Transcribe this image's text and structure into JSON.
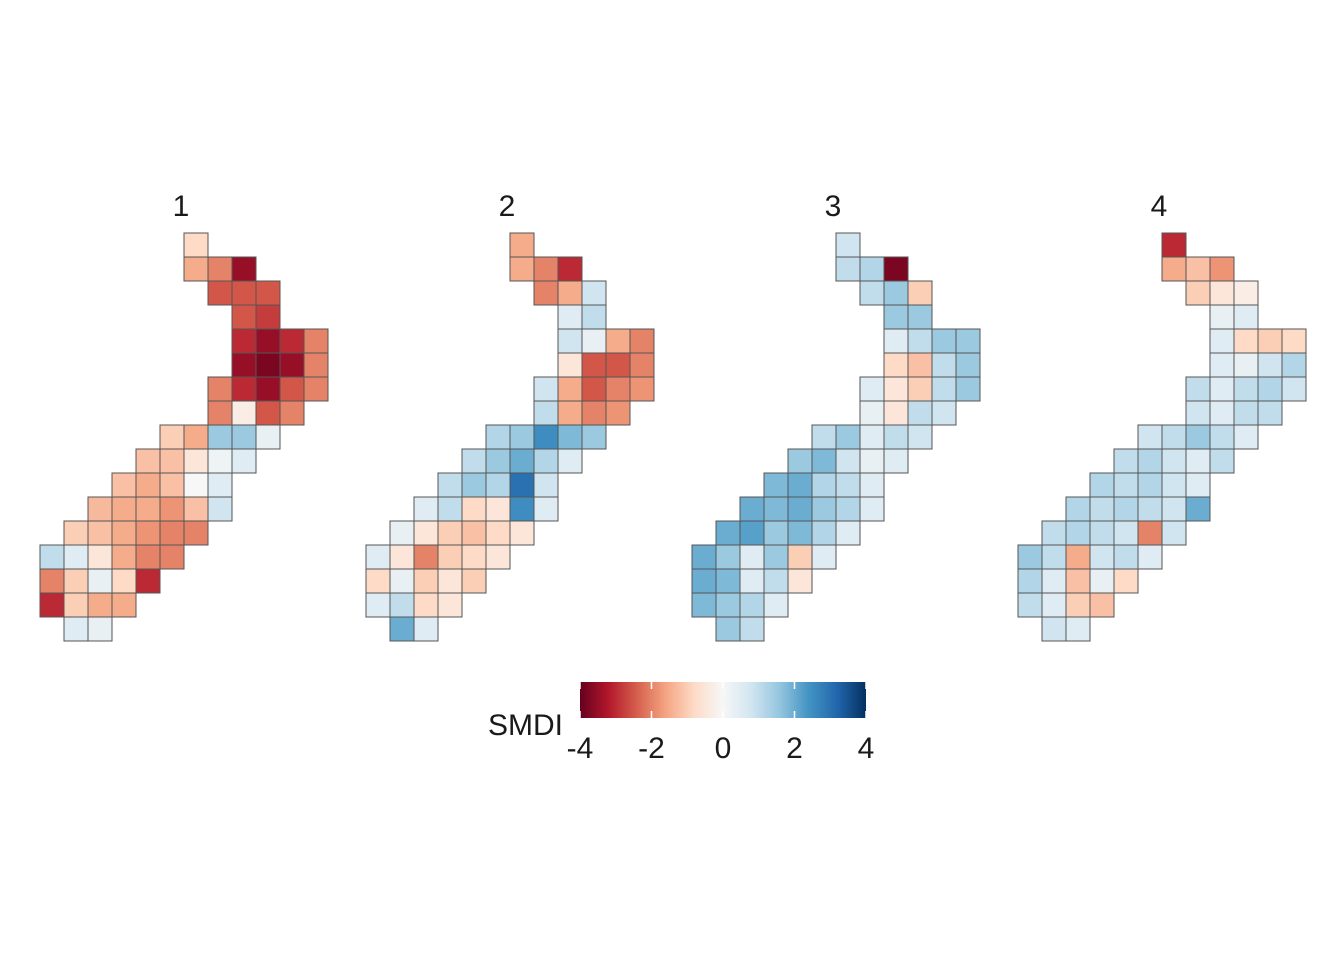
{
  "chart_data": {
    "type": "heatmap",
    "legend_title": "SMDI",
    "colors": [
      "#67001f",
      "#b2182b",
      "#d6604d",
      "#f4a582",
      "#fddbc7",
      "#f7f7f7",
      "#d1e5f0",
      "#92c5de",
      "#4393c3",
      "#2166ac",
      "#053061"
    ],
    "zlim": [
      -4,
      4
    ],
    "zticks": [
      -4,
      -2,
      0,
      2,
      4
    ],
    "panels": [
      {
        "title": "1",
        "rows": [
          [
            null,
            null,
            null,
            null,
            null,
            null,
            -0.8,
            null,
            null,
            null,
            null,
            null
          ],
          [
            null,
            null,
            null,
            null,
            null,
            null,
            -1.5,
            -2,
            -3.5,
            null,
            null,
            null
          ],
          [
            null,
            null,
            null,
            null,
            null,
            null,
            null,
            -2.5,
            -2.5,
            -2.5,
            null,
            null
          ],
          [
            null,
            null,
            null,
            null,
            null,
            null,
            null,
            null,
            -2.5,
            -2.8,
            null,
            null
          ],
          [
            null,
            null,
            null,
            null,
            null,
            null,
            null,
            null,
            -3,
            -3.5,
            -3,
            -2
          ],
          [
            null,
            null,
            null,
            null,
            null,
            null,
            null,
            null,
            -3.5,
            -3.8,
            -3.5,
            -2
          ],
          [
            null,
            null,
            null,
            null,
            null,
            null,
            null,
            -2,
            -3,
            -3.5,
            -2.5,
            -2
          ],
          [
            null,
            null,
            null,
            null,
            null,
            null,
            null,
            -2,
            -0.3,
            -2.5,
            -2,
            null
          ],
          [
            null,
            null,
            null,
            null,
            null,
            -1,
            -1.5,
            1.5,
            1.5,
            0.3,
            null,
            null
          ],
          [
            null,
            null,
            null,
            null,
            -1.2,
            -1.2,
            -0.5,
            0.2,
            0.5,
            null,
            null,
            null
          ],
          [
            null,
            null,
            null,
            -1.2,
            -1.5,
            -1.2,
            0,
            0.5,
            null,
            null,
            null,
            null
          ],
          [
            null,
            null,
            -1.3,
            -1.5,
            -1.5,
            -1.8,
            -1.2,
            0.8,
            null,
            null,
            null,
            null
          ],
          [
            null,
            -1,
            -1.2,
            -1.5,
            -1.8,
            -2,
            -2,
            null,
            null,
            null,
            null,
            null
          ],
          [
            1,
            0.5,
            -0.5,
            -1.5,
            -2,
            -2,
            null,
            null,
            null,
            null,
            null,
            null
          ],
          [
            -2,
            -1,
            0.3,
            -0.8,
            -3,
            null,
            null,
            null,
            null,
            null,
            null,
            null
          ],
          [
            -3,
            -1,
            -1.5,
            -1.5,
            null,
            null,
            null,
            null,
            null,
            null,
            null,
            null
          ],
          [
            null,
            0.5,
            0.3,
            null,
            null,
            null,
            null,
            null,
            null,
            null,
            null,
            null
          ]
        ]
      },
      {
        "title": "2",
        "rows": [
          [
            null,
            null,
            null,
            null,
            null,
            null,
            -1.5,
            null,
            null,
            null,
            null,
            null
          ],
          [
            null,
            null,
            null,
            null,
            null,
            null,
            -1.5,
            -2,
            -3,
            null,
            null,
            null
          ],
          [
            null,
            null,
            null,
            null,
            null,
            null,
            null,
            -2,
            -1.5,
            0.8,
            null,
            null
          ],
          [
            null,
            null,
            null,
            null,
            null,
            null,
            null,
            null,
            0.5,
            1,
            null,
            null
          ],
          [
            null,
            null,
            null,
            null,
            null,
            null,
            null,
            null,
            0.8,
            0.3,
            -1.5,
            -2
          ],
          [
            null,
            null,
            null,
            null,
            null,
            null,
            null,
            null,
            -0.5,
            -2.5,
            -2.5,
            -2
          ],
          [
            null,
            null,
            null,
            null,
            null,
            null,
            null,
            0.8,
            -1.5,
            -2.5,
            -2,
            -1.8
          ],
          [
            null,
            null,
            null,
            null,
            null,
            null,
            null,
            1,
            -1.5,
            -2,
            -1.8,
            null
          ],
          [
            null,
            null,
            null,
            null,
            null,
            1.2,
            1.5,
            2.5,
            1.8,
            1.5,
            null,
            null
          ],
          [
            null,
            null,
            null,
            null,
            1,
            1.5,
            2,
            1.2,
            0.5,
            null,
            null,
            null
          ],
          [
            null,
            null,
            null,
            1,
            1.5,
            1.2,
            3,
            0.8,
            null,
            null,
            null,
            null
          ],
          [
            null,
            null,
            0.5,
            1,
            -0.8,
            -0.5,
            2.5,
            0.5,
            null,
            null,
            null,
            null
          ],
          [
            null,
            0.3,
            -0.5,
            -1,
            -1.2,
            -0.8,
            -0.5,
            null,
            null,
            null,
            null,
            null
          ],
          [
            0.5,
            -0.5,
            -2,
            -1,
            -0.8,
            -0.5,
            null,
            null,
            null,
            null,
            null,
            null
          ],
          [
            -0.8,
            0.3,
            -1,
            -0.5,
            -1,
            null,
            null,
            null,
            null,
            null,
            null,
            null
          ],
          [
            0.5,
            1,
            -0.8,
            -0.5,
            null,
            null,
            null,
            null,
            null,
            null,
            null,
            null
          ],
          [
            null,
            2,
            0.5,
            null,
            null,
            null,
            null,
            null,
            null,
            null,
            null,
            null
          ]
        ]
      },
      {
        "title": "3",
        "rows": [
          [
            null,
            null,
            null,
            null,
            null,
            null,
            0.8,
            null,
            null,
            null,
            null,
            null
          ],
          [
            null,
            null,
            null,
            null,
            null,
            null,
            1,
            1.2,
            -3.8,
            null,
            null,
            null
          ],
          [
            null,
            null,
            null,
            null,
            null,
            null,
            null,
            1,
            1.5,
            -1,
            null,
            null
          ],
          [
            null,
            null,
            null,
            null,
            null,
            null,
            null,
            null,
            1.5,
            1.5,
            null,
            null
          ],
          [
            null,
            null,
            null,
            null,
            null,
            null,
            null,
            null,
            0.5,
            1,
            1.5,
            1.5
          ],
          [
            null,
            null,
            null,
            null,
            null,
            null,
            null,
            null,
            -0.8,
            -1.2,
            1,
            1.5
          ],
          [
            null,
            null,
            null,
            null,
            null,
            null,
            null,
            0.5,
            -0.5,
            -1,
            1,
            1.5
          ],
          [
            null,
            null,
            null,
            null,
            null,
            null,
            null,
            0.3,
            -0.5,
            1,
            0.8,
            null
          ],
          [
            null,
            null,
            null,
            null,
            null,
            1,
            1.5,
            0.5,
            1,
            0.8,
            null,
            null
          ],
          [
            null,
            null,
            null,
            null,
            1.5,
            1.8,
            0.8,
            0.3,
            0.5,
            null,
            null,
            null
          ],
          [
            null,
            null,
            null,
            1.8,
            2,
            1.2,
            1,
            0.5,
            null,
            null,
            null,
            null
          ],
          [
            null,
            null,
            2,
            1.8,
            2,
            1.5,
            1.2,
            0.5,
            null,
            null,
            null,
            null
          ],
          [
            null,
            2,
            2.2,
            1.5,
            1.8,
            1.2,
            0.5,
            null,
            null,
            null,
            null,
            null
          ],
          [
            2,
            1.5,
            0.5,
            1.5,
            -1,
            0.5,
            null,
            null,
            null,
            null,
            null,
            null
          ],
          [
            2,
            1.8,
            0.5,
            1,
            -0.5,
            null,
            null,
            null,
            null,
            null,
            null,
            null
          ],
          [
            1.8,
            1.5,
            1.2,
            0.5,
            null,
            null,
            null,
            null,
            null,
            null,
            null,
            null
          ],
          [
            null,
            1.5,
            1,
            null,
            null,
            null,
            null,
            null,
            null,
            null,
            null,
            null
          ]
        ]
      },
      {
        "title": "4",
        "rows": [
          [
            null,
            null,
            null,
            null,
            null,
            null,
            -3,
            null,
            null,
            null,
            null,
            null
          ],
          [
            null,
            null,
            null,
            null,
            null,
            null,
            -1.5,
            -1.2,
            -1.8,
            null,
            null,
            null
          ],
          [
            null,
            null,
            null,
            null,
            null,
            null,
            null,
            -1,
            -0.5,
            -0.3,
            null,
            null
          ],
          [
            null,
            null,
            null,
            null,
            null,
            null,
            null,
            null,
            0.3,
            0.5,
            null,
            null
          ],
          [
            null,
            null,
            null,
            null,
            null,
            null,
            null,
            null,
            0.5,
            -0.8,
            -1,
            -0.8
          ],
          [
            null,
            null,
            null,
            null,
            null,
            null,
            null,
            null,
            0.5,
            0.3,
            0.8,
            1.2
          ],
          [
            null,
            null,
            null,
            null,
            null,
            null,
            null,
            1,
            0.5,
            1,
            1.2,
            0.8
          ],
          [
            null,
            null,
            null,
            null,
            null,
            null,
            null,
            0.8,
            0.5,
            1,
            1,
            null
          ],
          [
            null,
            null,
            null,
            null,
            null,
            0.8,
            1,
            1.5,
            1,
            0.5,
            null,
            null
          ],
          [
            null,
            null,
            null,
            null,
            1,
            1.2,
            0.8,
            0.5,
            1,
            null,
            null,
            null
          ],
          [
            null,
            null,
            null,
            1.2,
            1,
            1.2,
            0.8,
            0.5,
            null,
            null,
            null,
            null
          ],
          [
            null,
            null,
            1.2,
            1,
            1.2,
            1,
            0.8,
            2,
            null,
            null,
            null,
            null
          ],
          [
            null,
            1,
            1.2,
            1,
            0.8,
            -2,
            0.8,
            null,
            null,
            null,
            null,
            null
          ],
          [
            1.5,
            1,
            -1.5,
            0.8,
            1,
            0.5,
            null,
            null,
            null,
            null,
            null,
            null
          ],
          [
            1.2,
            0.5,
            -1.2,
            0.3,
            -0.8,
            null,
            null,
            null,
            null,
            null,
            null,
            null
          ],
          [
            1,
            0.5,
            -1,
            -1.2,
            null,
            null,
            null,
            null,
            null,
            null,
            null,
            null
          ],
          [
            null,
            0.8,
            0.5,
            null,
            null,
            null,
            null,
            null,
            null,
            null,
            null,
            null
          ]
        ]
      }
    ]
  }
}
